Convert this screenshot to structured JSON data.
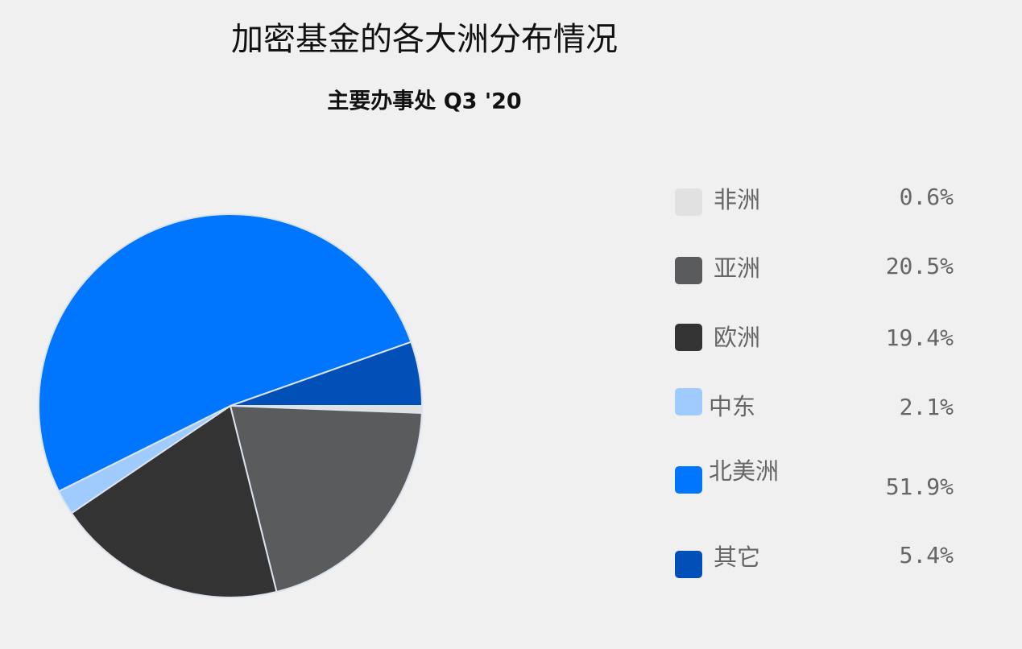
{
  "chart_data": {
    "type": "pie",
    "title": "加密基金的各大洲分布情况",
    "subtitle": "主要办事处 Q3 '20",
    "categories": [
      "非洲",
      "亚洲",
      "欧洲",
      "中东",
      "北美洲",
      "其它"
    ],
    "values": [
      0.6,
      20.5,
      19.4,
      2.1,
      51.9,
      5.4
    ],
    "value_labels": [
      "0.6%",
      "20.5%",
      "19.4%",
      "2.1%",
      "51.9%",
      "5.4%"
    ],
    "colors": [
      "#e1e1e2",
      "#5a5b5d",
      "#333333",
      "#a0cbff",
      "#0076ff",
      "#0050b8"
    ],
    "legend": "right"
  }
}
